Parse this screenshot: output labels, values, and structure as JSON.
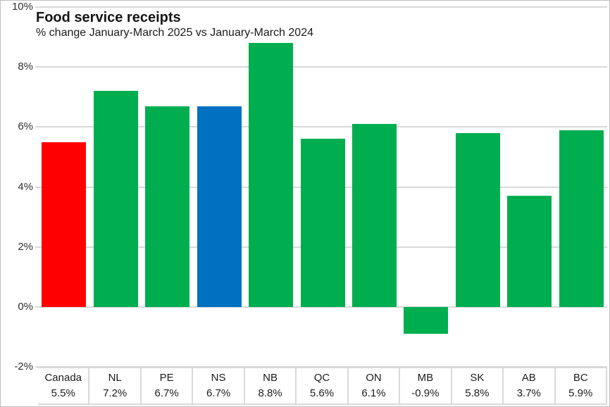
{
  "chart_data": {
    "type": "bar",
    "title": "Food service receipts",
    "subtitle": "% change January-March 2025 vs January-March 2024",
    "categories": [
      "Canada",
      "NL",
      "PE",
      "NS",
      "NB",
      "QC",
      "ON",
      "MB",
      "SK",
      "AB",
      "BC"
    ],
    "values": [
      5.5,
      7.2,
      6.7,
      6.7,
      8.8,
      5.6,
      6.1,
      -0.9,
      5.8,
      3.7,
      5.9
    ],
    "value_labels": [
      "5.5%",
      "7.2%",
      "6.7%",
      "6.7%",
      "8.8%",
      "5.6%",
      "6.1%",
      "-0.9%",
      "5.8%",
      "3.7%",
      "5.9%"
    ],
    "bar_colors": [
      "#FF0000",
      "#00AE50",
      "#00AE50",
      "#0070C0",
      "#00AE50",
      "#00AE50",
      "#00AE50",
      "#00AE50",
      "#00AE50",
      "#00AE50",
      "#00AE50"
    ],
    "xlabel": "",
    "ylabel": "",
    "ylim": [
      -2,
      10
    ],
    "yticks": [
      10,
      8,
      6,
      4,
      2,
      0,
      -2
    ],
    "ytick_labels": [
      "10%",
      "8%",
      "6%",
      "4%",
      "2%",
      "0%",
      "-2%"
    ],
    "grid": true,
    "legend": false,
    "data_table_below_axis": true
  },
  "colors": {
    "default_bar": "#00AE50",
    "canada_highlight": "#FF0000",
    "ns_highlight": "#0070C0",
    "gridline": "#d9d9d9"
  }
}
